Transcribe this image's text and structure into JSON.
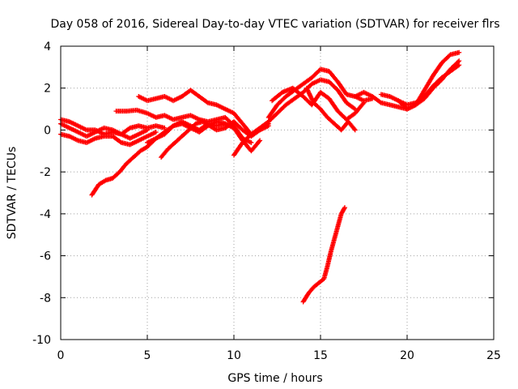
{
  "chart_data": {
    "type": "scatter",
    "title": "Day 058 of 2016, Sidereal Day-to-day VTEC variation (SDTVAR) for receiver flrs",
    "xlabel": "GPS time / hours",
    "ylabel": "SDTVAR / TECUs",
    "xlim": [
      0,
      25
    ],
    "ylim": [
      -10,
      4
    ],
    "xticks": [
      0,
      5,
      10,
      15,
      20,
      25
    ],
    "yticks": [
      -10,
      -8,
      -6,
      -4,
      -2,
      0,
      2,
      4
    ],
    "xtick_labels": [
      "0",
      "5",
      "10",
      "15",
      "20",
      "25"
    ],
    "ytick_labels": [
      "-10",
      "-8",
      "-6",
      "-4",
      "-2",
      "0",
      "2",
      "4"
    ],
    "grid": true,
    "marker": "+",
    "color": "#ff0000",
    "series": [
      {
        "name": "s1",
        "x": [
          0.0,
          0.5,
          1.0,
          1.5,
          2.0,
          2.5,
          3.0,
          3.5,
          4.0,
          4.5,
          5.0,
          5.5,
          6.0
        ],
        "y": [
          0.5,
          0.4,
          0.2,
          0.0,
          0.0,
          -0.2,
          -0.1,
          -0.2,
          0.1,
          0.2,
          0.1,
          0.2,
          0.1
        ]
      },
      {
        "name": "s2",
        "x": [
          0.0,
          0.5,
          1.0,
          1.5,
          2.0,
          2.5,
          3.0,
          3.5,
          4.0,
          4.5,
          5.0,
          5.5
        ],
        "y": [
          -0.2,
          -0.3,
          -0.5,
          -0.6,
          -0.4,
          -0.3,
          -0.3,
          -0.6,
          -0.7,
          -0.5,
          -0.3,
          -0.1
        ]
      },
      {
        "name": "s3",
        "x": [
          0.0,
          0.5,
          1.0,
          1.5,
          2.0,
          2.5,
          3.0,
          3.5,
          4.0,
          4.5,
          5.0
        ],
        "y": [
          0.3,
          0.1,
          -0.1,
          -0.3,
          -0.1,
          0.1,
          0.0,
          -0.2,
          -0.4,
          -0.2,
          0.0
        ]
      },
      {
        "name": "s4",
        "x": [
          1.8,
          2.2,
          2.6,
          3.0,
          3.4,
          3.8,
          4.2,
          4.6,
          5.0,
          5.5,
          6.0,
          6.5,
          7.0,
          7.5,
          8.0,
          8.5,
          9.0,
          9.5,
          10.0
        ],
        "y": [
          -3.1,
          -2.6,
          -2.4,
          -2.3,
          -2.0,
          -1.6,
          -1.3,
          -1.0,
          -0.8,
          -0.4,
          -0.1,
          0.2,
          0.4,
          0.2,
          0.0,
          0.3,
          0.2,
          0.3,
          0.1
        ]
      },
      {
        "name": "s5",
        "x": [
          3.2,
          3.8,
          4.4,
          5.0,
          5.5,
          6.0,
          6.5,
          7.0,
          7.5,
          8.0,
          8.5,
          9.0,
          9.5,
          10.0,
          10.5,
          11.0
        ],
        "y": [
          0.9,
          0.9,
          0.95,
          0.8,
          0.6,
          0.7,
          0.5,
          0.6,
          0.7,
          0.5,
          0.4,
          0.5,
          0.6,
          0.2,
          -0.4,
          -0.6
        ]
      },
      {
        "name": "s6",
        "x": [
          4.5,
          5.0,
          5.5,
          6.0,
          6.5,
          7.0,
          7.5,
          8.0,
          8.5,
          9.0,
          9.5,
          10.0,
          10.5,
          11.0,
          11.5,
          12.0
        ],
        "y": [
          1.6,
          1.4,
          1.5,
          1.6,
          1.4,
          1.6,
          1.9,
          1.6,
          1.3,
          1.2,
          1.0,
          0.8,
          0.3,
          -0.2,
          0.0,
          0.2
        ]
      },
      {
        "name": "s7",
        "x": [
          5.0,
          5.5,
          6.0,
          6.5,
          7.0,
          7.5,
          8.0,
          8.5,
          9.0,
          9.5,
          10.0,
          10.5,
          11.0,
          11.5
        ],
        "y": [
          -0.6,
          -0.4,
          -0.2,
          0.2,
          0.3,
          0.1,
          -0.1,
          0.2,
          0.4,
          0.3,
          0.1,
          -0.5,
          -1.0,
          -0.5
        ]
      },
      {
        "name": "s8",
        "x": [
          5.8,
          6.2,
          6.6,
          7.0,
          7.4,
          7.8,
          8.2,
          8.6,
          9.0,
          9.5,
          10.0,
          10.5,
          11.0,
          11.5,
          12.0
        ],
        "y": [
          -1.3,
          -0.9,
          -0.6,
          -0.3,
          0.0,
          0.3,
          0.4,
          0.2,
          0.0,
          0.1,
          0.4,
          0.0,
          -0.3,
          0.0,
          0.3
        ]
      },
      {
        "name": "s9",
        "x": [
          10.0,
          10.5,
          11.0,
          11.5,
          12.0,
          12.5,
          13.0,
          13.5,
          14.0,
          14.5,
          15.0,
          15.5,
          16.0,
          16.5,
          17.0
        ],
        "y": [
          -1.2,
          -0.6,
          -0.2,
          0.1,
          0.4,
          0.8,
          1.2,
          1.5,
          1.8,
          2.2,
          2.4,
          2.3,
          1.9,
          1.3,
          1.0
        ]
      },
      {
        "name": "s10",
        "x": [
          12.0,
          12.5,
          13.0,
          13.5,
          14.0,
          14.5,
          15.0,
          15.5,
          16.0,
          16.5,
          17.0,
          17.5,
          18.0
        ],
        "y": [
          0.6,
          1.2,
          1.6,
          1.9,
          2.2,
          2.5,
          2.9,
          2.8,
          2.3,
          1.7,
          1.6,
          1.4,
          1.5
        ]
      },
      {
        "name": "s11",
        "x": [
          12.2,
          12.8,
          13.4,
          14.0,
          14.5,
          15.0,
          15.5,
          16.0,
          16.5,
          17.0,
          17.5
        ],
        "y": [
          1.4,
          1.8,
          2.0,
          1.6,
          1.2,
          1.8,
          1.5,
          0.9,
          0.5,
          0.8,
          1.3
        ]
      },
      {
        "name": "s12",
        "x": [
          14.2,
          14.6,
          15.0,
          15.4,
          15.8,
          16.2,
          16.6,
          17.0
        ],
        "y": [
          2.0,
          1.3,
          1.0,
          0.6,
          0.3,
          0.0,
          0.4,
          0.0
        ]
      },
      {
        "name": "s13",
        "x": [
          17.0,
          17.5,
          18.0,
          18.5,
          19.0,
          19.5,
          20.0,
          20.5,
          21.0,
          21.5,
          22.0,
          22.5,
          23.0
        ],
        "y": [
          1.6,
          1.8,
          1.6,
          1.3,
          1.2,
          1.1,
          1.0,
          1.2,
          1.9,
          2.6,
          3.2,
          3.6,
          3.7
        ]
      },
      {
        "name": "s14",
        "x": [
          18.5,
          19.0,
          19.5,
          20.0,
          20.5,
          21.0,
          21.5,
          22.0,
          22.5,
          23.0
        ],
        "y": [
          1.7,
          1.6,
          1.4,
          1.2,
          1.3,
          1.6,
          2.1,
          2.5,
          2.8,
          3.1
        ]
      },
      {
        "name": "s15",
        "x": [
          19.5,
          20.0,
          20.5,
          21.0,
          21.5,
          22.0,
          22.5,
          23.0
        ],
        "y": [
          1.4,
          1.0,
          1.2,
          1.5,
          2.0,
          2.4,
          2.9,
          3.3
        ]
      },
      {
        "name": "s16",
        "x": [
          14.0,
          14.3,
          14.6,
          14.9,
          15.2,
          15.4,
          15.6,
          15.8,
          16.0,
          16.2,
          16.4
        ],
        "y": [
          -8.2,
          -7.8,
          -7.5,
          -7.3,
          -7.1,
          -6.5,
          -5.8,
          -5.2,
          -4.6,
          -4.0,
          -3.7
        ]
      }
    ]
  }
}
